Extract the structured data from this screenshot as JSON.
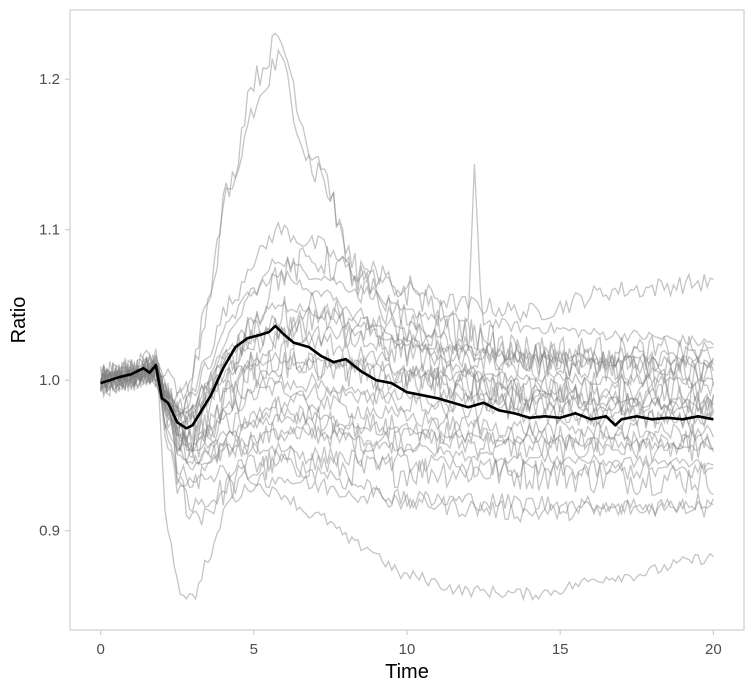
{
  "chart_data": {
    "type": "line",
    "title": "",
    "xlabel": "Time",
    "ylabel": "Ratio",
    "xlim": [
      -1,
      21
    ],
    "ylim": [
      0.834,
      1.246
    ],
    "x_ticks": [
      0,
      5,
      10,
      15,
      20
    ],
    "x_tick_labels": [
      "0",
      "5",
      "10",
      "15",
      "20"
    ],
    "y_ticks": [
      0.9,
      1.0,
      1.1,
      1.2
    ],
    "y_tick_labels": [
      "0.9",
      "1.0",
      "1.1",
      "1.2"
    ],
    "grid": false,
    "legend": "none",
    "individual_color": "#7f7f7f",
    "mean_color": "#000000",
    "keypoint_times": [
      0,
      1,
      1.8,
      2.2,
      2.6,
      3.0,
      3.5,
      4.2,
      5.0,
      5.8,
      7,
      8.5,
      10,
      12,
      14,
      17,
      20
    ],
    "series_keypoints": [
      [
        1.0,
        1.004,
        1.008,
        0.99,
        0.975,
        0.975,
        0.99,
        1.005,
        1.01,
        1.015,
        1.012,
        1.01,
        1.005,
        1.003,
        1.002,
        1.0,
        1.0
      ],
      [
        0.998,
        1.002,
        1.005,
        0.985,
        0.96,
        0.955,
        0.965,
        0.98,
        0.99,
        0.995,
        0.992,
        0.99,
        0.988,
        0.985,
        0.985,
        0.985,
        0.983
      ],
      [
        1.0,
        1.003,
        1.006,
        0.975,
        0.95,
        0.945,
        0.95,
        0.955,
        0.96,
        0.965,
        0.965,
        0.96,
        0.96,
        0.958,
        0.955,
        0.955,
        0.955
      ],
      [
        0.999,
        1.004,
        1.006,
        0.97,
        0.93,
        0.91,
        0.915,
        0.93,
        0.94,
        0.945,
        0.945,
        0.94,
        0.94,
        0.94,
        0.938,
        0.935,
        0.935
      ],
      [
        1.0,
        1.006,
        1.01,
        0.985,
        0.97,
        0.98,
        1.0,
        1.03,
        1.06,
        1.08,
        1.07,
        1.06,
        1.045,
        1.04,
        1.035,
        1.03,
        1.025
      ],
      [
        1.0,
        1.005,
        1.012,
        0.99,
        0.975,
        0.99,
        1.02,
        1.05,
        1.08,
        1.1,
        1.09,
        1.07,
        1.06,
        1.05,
        1.045,
        1.06,
        1.065
      ],
      [
        1.0,
        1.006,
        1.015,
        1.0,
        0.99,
        1.01,
        1.06,
        1.13,
        1.2,
        1.225,
        1.15,
        1.06,
        1.03,
        1.02,
        1.015,
        1.015,
        1.015
      ],
      [
        1.0,
        1.005,
        1.012,
        0.995,
        0.985,
        1.0,
        1.05,
        1.12,
        1.18,
        1.21,
        1.14,
        1.07,
        1.04,
        1.03,
        1.02,
        1.018,
        1.018
      ],
      [
        0.998,
        1.0,
        1.005,
        0.9,
        0.86,
        0.855,
        0.88,
        0.92,
        0.93,
        0.925,
        0.91,
        0.89,
        0.87,
        0.86,
        0.858,
        0.87,
        0.882
      ],
      [
        0.998,
        1.0,
        1.004,
        0.96,
        0.935,
        0.93,
        0.935,
        0.94,
        0.945,
        0.945,
        0.94,
        0.93,
        0.92,
        0.915,
        0.912,
        0.915,
        0.92
      ],
      [
        1.0,
        1.003,
        1.006,
        0.98,
        0.96,
        0.96,
        0.97,
        0.99,
        1.01,
        1.03,
        1.05,
        1.04,
        1.03,
        1.02,
        1.01,
        1.008,
        1.008
      ],
      [
        1.0,
        1.004,
        1.008,
        0.985,
        0.97,
        0.97,
        0.985,
        1.01,
        1.04,
        1.07,
        1.08,
        1.07,
        1.06,
        1.03,
        1.015,
        1.005,
        1.0
      ],
      [
        1.0,
        1.003,
        1.007,
        0.98,
        0.96,
        0.95,
        0.955,
        0.965,
        0.97,
        0.975,
        0.975,
        0.97,
        0.965,
        0.962,
        0.96,
        0.958,
        0.955
      ],
      [
        0.999,
        1.002,
        1.005,
        0.975,
        0.955,
        0.945,
        0.95,
        0.955,
        0.955,
        0.955,
        0.95,
        0.948,
        0.945,
        0.942,
        0.94,
        0.94,
        0.94
      ],
      [
        1.0,
        1.004,
        1.008,
        0.99,
        0.98,
        0.985,
        1.0,
        1.02,
        1.03,
        1.035,
        1.03,
        1.025,
        1.02,
        1.015,
        1.012,
        1.01,
        1.008
      ],
      [
        1.0,
        1.003,
        1.006,
        0.985,
        0.97,
        0.975,
        0.99,
        1.0,
        1.01,
        1.015,
        1.01,
        1.005,
        1.0,
        0.998,
        0.995,
        0.995,
        0.993
      ],
      [
        1.0,
        1.005,
        1.01,
        0.99,
        0.98,
        0.99,
        1.01,
        1.04,
        1.06,
        1.07,
        1.06,
        1.04,
        1.025,
        1.005,
        0.99,
        0.985,
        0.983
      ],
      [
        0.998,
        1.001,
        1.004,
        0.97,
        0.94,
        0.93,
        0.94,
        0.96,
        0.975,
        0.985,
        0.985,
        0.98,
        0.975,
        0.97,
        0.968,
        0.966,
        0.965
      ],
      [
        1.0,
        1.002,
        1.005,
        0.98,
        0.96,
        0.955,
        0.96,
        0.97,
        0.975,
        0.98,
        0.975,
        0.97,
        0.968,
        0.965,
        0.962,
        0.96,
        0.96
      ],
      [
        0.999,
        1.003,
        1.007,
        0.985,
        0.97,
        0.975,
        0.99,
        1.015,
        1.035,
        1.045,
        1.04,
        1.03,
        1.02,
        1.0,
        0.99,
        0.988,
        0.985
      ],
      [
        1.0,
        1.004,
        1.009,
        0.99,
        0.975,
        0.98,
        1.0,
        1.02,
        1.04,
        1.05,
        1.045,
        1.035,
        1.025,
        1.02,
        1.015,
        1.013,
        1.012
      ],
      [
        0.999,
        1.001,
        1.004,
        0.96,
        0.925,
        0.915,
        0.92,
        0.93,
        0.935,
        0.935,
        0.93,
        0.925,
        0.92,
        0.92,
        0.918,
        0.916,
        0.915
      ],
      [
        1.0,
        1.004,
        1.008,
        0.99,
        0.975,
        0.978,
        0.99,
        1.01,
        1.025,
        1.03,
        1.025,
        1.015,
        1.005,
        0.99,
        0.98,
        0.975,
        0.972
      ],
      [
        1.0,
        1.003,
        1.007,
        0.985,
        0.965,
        0.96,
        0.97,
        0.99,
        1.005,
        1.012,
        1.01,
        1.005,
        1.0,
        0.995,
        0.99,
        0.988,
        0.987
      ],
      [
        0.999,
        1.002,
        1.005,
        0.975,
        0.95,
        0.94,
        0.945,
        0.955,
        0.96,
        0.965,
        0.965,
        0.96,
        0.955,
        0.95,
        0.948,
        0.946,
        0.945
      ],
      [
        1.0,
        1.003,
        1.006,
        0.98,
        0.96,
        0.958,
        0.965,
        0.98,
        0.995,
        1.0,
        0.998,
        0.99,
        0.985,
        0.98,
        0.978,
        0.976,
        0.975
      ]
    ],
    "mean_series": {
      "x": [
        0,
        0.6,
        1.0,
        1.4,
        1.6,
        1.8,
        2.0,
        2.2,
        2.5,
        2.8,
        3.0,
        3.3,
        3.6,
        4.0,
        4.4,
        4.8,
        5.2,
        5.5,
        5.7,
        6.0,
        6.3,
        6.8,
        7.2,
        7.6,
        8.0,
        8.5,
        9.0,
        9.5,
        10.0,
        10.5,
        11.0,
        11.5,
        12.0,
        12.5,
        13.0,
        13.5,
        14.0,
        14.5,
        15.0,
        15.5,
        16.0,
        16.5,
        16.8,
        17.0,
        17.5,
        18.0,
        18.5,
        19.0,
        19.5,
        20.0
      ],
      "y": [
        0.998,
        1.002,
        1.004,
        1.008,
        1.005,
        1.01,
        0.988,
        0.985,
        0.972,
        0.968,
        0.97,
        0.98,
        0.99,
        1.008,
        1.022,
        1.028,
        1.03,
        1.032,
        1.036,
        1.03,
        1.025,
        1.022,
        1.016,
        1.012,
        1.014,
        1.006,
        1.0,
        0.998,
        0.992,
        0.99,
        0.988,
        0.985,
        0.982,
        0.985,
        0.98,
        0.978,
        0.975,
        0.976,
        0.975,
        0.978,
        0.974,
        0.976,
        0.97,
        0.974,
        0.976,
        0.974,
        0.975,
        0.974,
        0.976,
        0.974
      ]
    }
  }
}
